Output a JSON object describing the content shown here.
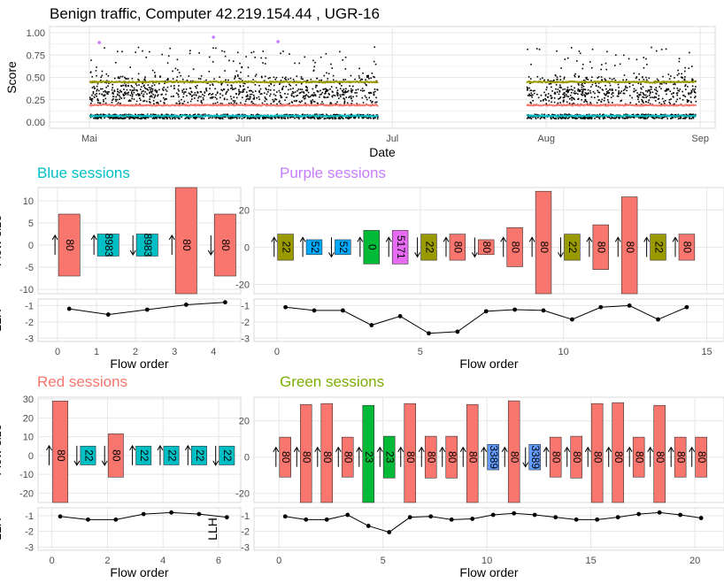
{
  "title": "Benign traffic, Computer 42.219.154.44 , UGR-16",
  "colors": {
    "blue": "#00BFC4",
    "purple": "#C77CFF",
    "red": "#F8766D",
    "green": "#7CAE00",
    "olive": "#999900",
    "blue2": "#00A9FF",
    "green2": "#00BA38",
    "magenta": "#E76BF3",
    "blue3": "#619CFF",
    "teal": "#00BFC4"
  },
  "chart_data": [
    {
      "type": "scatter",
      "name": "score-timeline",
      "xlabel": "Date",
      "ylabel": "Score",
      "x_ticks": [
        "Mai",
        "Jun",
        "Jul",
        "Aug",
        "Sep"
      ],
      "y_ticks": [
        "0.00",
        "0.25",
        "0.50",
        "0.75",
        "1.00"
      ],
      "ylim": [
        0,
        1
      ],
      "series_levels": [
        {
          "color": "olive",
          "value": 0.45
        },
        {
          "color": "red",
          "value": 0.19
        },
        {
          "color": "blue",
          "value": 0.07
        }
      ],
      "outliers": [
        {
          "date": "2016-05-03",
          "value": 0.89
        },
        {
          "date": "2016-05-26",
          "value": 0.95
        },
        {
          "date": "2016-06-08",
          "value": 0.9
        }
      ],
      "active_periods": [
        [
          "2016-05-01",
          "2016-06-28"
        ],
        [
          "2016-07-28",
          "2016-08-31"
        ]
      ]
    },
    {
      "type": "bar",
      "name": "blue-sessions",
      "title": "Blue sessions",
      "title_color": "blue",
      "xlabel": "Flow order",
      "ylabel": "Flow size",
      "ylim": [
        -11,
        13
      ],
      "y_ticks": [
        -10,
        -5,
        0,
        5,
        10
      ],
      "xlim": [
        -0.5,
        4.7
      ],
      "x_ticks": [
        0,
        1,
        2,
        3,
        4
      ],
      "bars": [
        {
          "x": 0.3,
          "value": 7,
          "port": "80",
          "color": "red",
          "direction": "up"
        },
        {
          "x": 1.3,
          "value": 2.5,
          "port": "8983",
          "color": "blue",
          "direction": "up"
        },
        {
          "x": 2.3,
          "value": 2.5,
          "port": "8983",
          "color": "blue",
          "direction": "down"
        },
        {
          "x": 3.3,
          "value": 13,
          "port": "80",
          "color": "red",
          "direction": "up"
        },
        {
          "x": 4.3,
          "value": 7,
          "port": "80",
          "color": "red",
          "direction": "down"
        }
      ],
      "llh": {
        "ylabel": "LLH",
        "y_ticks": [
          -1,
          -2,
          -3
        ],
        "ylim": [
          -3.2,
          -0.6
        ],
        "x": [
          0.3,
          1.3,
          2.3,
          3.3,
          4.3
        ],
        "values": [
          -1.2,
          -1.55,
          -1.25,
          -0.95,
          -0.8
        ]
      }
    },
    {
      "type": "bar",
      "name": "purple-sessions",
      "title": "Purple sessions",
      "title_color": "purple",
      "xlabel": "Flow order",
      "ylabel": "",
      "ylim": [
        -25,
        32
      ],
      "y_ticks": [
        -20,
        0,
        20
      ],
      "xlim": [
        -0.8,
        15.6
      ],
      "x_ticks": [
        0,
        5,
        10,
        15
      ],
      "bars": [
        {
          "x": 0.3,
          "value": 7,
          "port": "22",
          "color": "olive",
          "direction": "up"
        },
        {
          "x": 1.3,
          "value": 4,
          "port": "52",
          "color": "blue2",
          "direction": "up"
        },
        {
          "x": 2.3,
          "value": 4,
          "port": "52",
          "color": "blue2",
          "direction": "down"
        },
        {
          "x": 3.3,
          "value": 9,
          "port": "0",
          "color": "green2",
          "direction": "up"
        },
        {
          "x": 4.3,
          "value": 9,
          "port": "5171",
          "color": "magenta",
          "direction": "up"
        },
        {
          "x": 5.3,
          "value": 7,
          "port": "22",
          "color": "olive",
          "direction": "down"
        },
        {
          "x": 6.3,
          "value": 7,
          "port": "80",
          "color": "red",
          "direction": "up"
        },
        {
          "x": 7.3,
          "value": 4,
          "port": "80",
          "color": "red",
          "direction": "down"
        },
        {
          "x": 8.3,
          "value": 10.5,
          "port": "80",
          "color": "red",
          "direction": "up"
        },
        {
          "x": 9.3,
          "value": 30,
          "port": "80",
          "color": "red",
          "direction": "up"
        },
        {
          "x": 10.3,
          "value": 7,
          "port": "22",
          "color": "olive",
          "direction": "down"
        },
        {
          "x": 11.3,
          "value": 12,
          "port": "80",
          "color": "red",
          "direction": "up"
        },
        {
          "x": 12.3,
          "value": 27,
          "port": "80",
          "color": "red",
          "direction": "up"
        },
        {
          "x": 13.3,
          "value": 7,
          "port": "22",
          "color": "olive",
          "direction": "up"
        },
        {
          "x": 14.3,
          "value": 7,
          "port": "80",
          "color": "red",
          "direction": "up"
        }
      ],
      "llh": {
        "ylabel": "",
        "y_ticks": [
          -1,
          -2,
          -3
        ],
        "ylim": [
          -3.2,
          -0.6
        ],
        "x": [
          0.3,
          1.3,
          2.3,
          3.3,
          4.3,
          5.3,
          6.3,
          7.3,
          8.3,
          9.3,
          10.3,
          11.3,
          12.3,
          13.3,
          14.3
        ],
        "values": [
          -1.1,
          -1.3,
          -1.3,
          -2.2,
          -1.65,
          -2.7,
          -2.6,
          -1.35,
          -1.25,
          -1.3,
          -1.85,
          -1.1,
          -1.0,
          -1.85,
          -1.1
        ]
      }
    },
    {
      "type": "bar",
      "name": "red-sessions",
      "title": "Red sessions",
      "title_color": "red",
      "xlabel": "Flow order",
      "ylabel": "Flow size",
      "ylim": [
        -25,
        31
      ],
      "y_ticks": [
        -20,
        -10,
        0,
        10,
        20,
        30
      ],
      "xlim": [
        -0.5,
        6.8
      ],
      "x_ticks": [
        0,
        2,
        4,
        6
      ],
      "bars": [
        {
          "x": 0.3,
          "value": 29,
          "port": "80",
          "color": "red",
          "direction": "up"
        },
        {
          "x": 1.3,
          "value": 5,
          "port": "22",
          "color": "teal",
          "direction": "down"
        },
        {
          "x": 2.3,
          "value": 11.5,
          "port": "80",
          "color": "red",
          "direction": "down"
        },
        {
          "x": 3.3,
          "value": 5,
          "port": "22",
          "color": "teal",
          "direction": "up"
        },
        {
          "x": 4.3,
          "value": 5,
          "port": "22",
          "color": "teal",
          "direction": "up"
        },
        {
          "x": 5.3,
          "value": 5,
          "port": "22",
          "color": "teal",
          "direction": "up"
        },
        {
          "x": 6.3,
          "value": 5,
          "port": "22",
          "color": "teal",
          "direction": "down"
        }
      ],
      "llh": {
        "ylabel": "LLH",
        "y_ticks": [
          -1,
          -2,
          -3
        ],
        "ylim": [
          -3.2,
          -0.5
        ],
        "x": [
          0.3,
          1.3,
          2.3,
          3.3,
          4.3,
          5.3,
          6.3
        ],
        "values": [
          -1.05,
          -1.25,
          -1.25,
          -0.9,
          -0.8,
          -0.9,
          -1.1
        ]
      }
    },
    {
      "type": "bar",
      "name": "green-sessions",
      "title": "Green sessions",
      "title_color": "green",
      "xlabel": "Flow order",
      "ylabel": "",
      "ylim": [
        -25,
        33
      ],
      "y_ticks": [
        -20,
        0,
        20
      ],
      "xlim": [
        -1.2,
        21.4
      ],
      "x_ticks": [
        0,
        5,
        10,
        15,
        20
      ],
      "bars": [
        {
          "x": 0.3,
          "value": 11,
          "port": "80",
          "color": "red",
          "direction": "up"
        },
        {
          "x": 1.3,
          "value": 29,
          "port": "80",
          "color": "red",
          "direction": "up"
        },
        {
          "x": 2.3,
          "value": 29.5,
          "port": "80",
          "color": "red",
          "direction": "up"
        },
        {
          "x": 3.3,
          "value": 11,
          "port": "80",
          "color": "red",
          "direction": "up"
        },
        {
          "x": 4.3,
          "value": 28.5,
          "port": "23",
          "color": "green2",
          "direction": "up"
        },
        {
          "x": 5.3,
          "value": 11.5,
          "port": "23",
          "color": "green2",
          "direction": "up"
        },
        {
          "x": 6.3,
          "value": 29.5,
          "port": "80",
          "color": "red",
          "direction": "up"
        },
        {
          "x": 7.3,
          "value": 11.5,
          "port": "80",
          "color": "red",
          "direction": "up"
        },
        {
          "x": 8.3,
          "value": 11.5,
          "port": "80",
          "color": "red",
          "direction": "up"
        },
        {
          "x": 9.3,
          "value": 29,
          "port": "80",
          "color": "red",
          "direction": "up"
        },
        {
          "x": 10.3,
          "value": 7,
          "port": "3389",
          "color": "blue3",
          "direction": "up"
        },
        {
          "x": 11.3,
          "value": 31,
          "port": "80",
          "color": "red",
          "direction": "up"
        },
        {
          "x": 12.3,
          "value": 7,
          "port": "3389",
          "color": "blue3",
          "direction": "down"
        },
        {
          "x": 13.3,
          "value": 11,
          "port": "80",
          "color": "red",
          "direction": "up"
        },
        {
          "x": 14.3,
          "value": 11.5,
          "port": "80",
          "color": "red",
          "direction": "up"
        },
        {
          "x": 15.3,
          "value": 29.5,
          "port": "80",
          "color": "red",
          "direction": "up"
        },
        {
          "x": 16.3,
          "value": 30,
          "port": "80",
          "color": "red",
          "direction": "up"
        },
        {
          "x": 17.3,
          "value": 11,
          "port": "80",
          "color": "red",
          "direction": "up"
        },
        {
          "x": 18.3,
          "value": 28.5,
          "port": "80",
          "color": "red",
          "direction": "up"
        },
        {
          "x": 19.3,
          "value": 11,
          "port": "80",
          "color": "red",
          "direction": "up"
        },
        {
          "x": 20.3,
          "value": 11,
          "port": "80",
          "color": "red",
          "direction": "up"
        }
      ],
      "llh": {
        "ylabel": "LLH",
        "y_ticks": [
          -1,
          -2,
          -3
        ],
        "ylim": [
          -3.2,
          -0.5
        ],
        "x": [
          0.3,
          1.3,
          2.3,
          3.3,
          4.3,
          5.3,
          6.3,
          7.3,
          8.3,
          9.3,
          10.3,
          11.3,
          12.3,
          13.3,
          14.3,
          15.3,
          16.3,
          17.3,
          18.3,
          19.3,
          20.3
        ],
        "values": [
          -1.05,
          -1.25,
          -1.25,
          -0.95,
          -1.65,
          -2.05,
          -1.1,
          -1.05,
          -1.25,
          -1.2,
          -0.95,
          -0.85,
          -0.95,
          -1.1,
          -1.25,
          -1.25,
          -1.1,
          -0.9,
          -0.8,
          -0.95,
          -1.15
        ]
      }
    }
  ]
}
